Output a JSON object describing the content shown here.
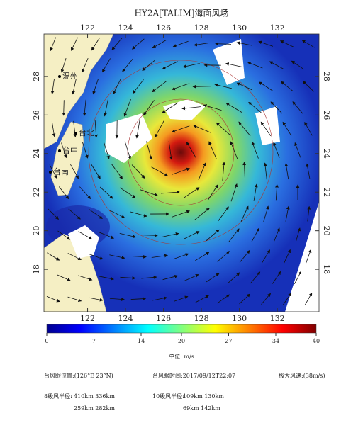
{
  "title": "HY2A[TALIM]海面风场",
  "map": {
    "lon_range": [
      119.7,
      134.2
    ],
    "lat_range": [
      15.8,
      30.2
    ],
    "lon_ticks": [
      122,
      124,
      126,
      128,
      130,
      132
    ],
    "lat_ticks": [
      18,
      20,
      22,
      24,
      26,
      28
    ],
    "cities": [
      "温州",
      "台北",
      "台中",
      "台南"
    ]
  },
  "colorbar": {
    "range": [
      0,
      40
    ],
    "ticks": [
      0,
      7,
      14,
      20,
      27,
      34,
      40
    ],
    "unit": "单位:   m/s"
  },
  "info": {
    "eye_position": "台风眼位置:(126°E  23°N)",
    "eye_time": "台风眼时间:2017/09/12T22:07",
    "max_wind": "极大风速:(38m/s)",
    "r8_label": "8级风半径:",
    "r8_row1": "410km    336km",
    "r8_row2": "259km    282km",
    "r10_label": "10级风半径:",
    "r10_row1": "109km    130km",
    "r10_row2": "69km    142km"
  }
}
